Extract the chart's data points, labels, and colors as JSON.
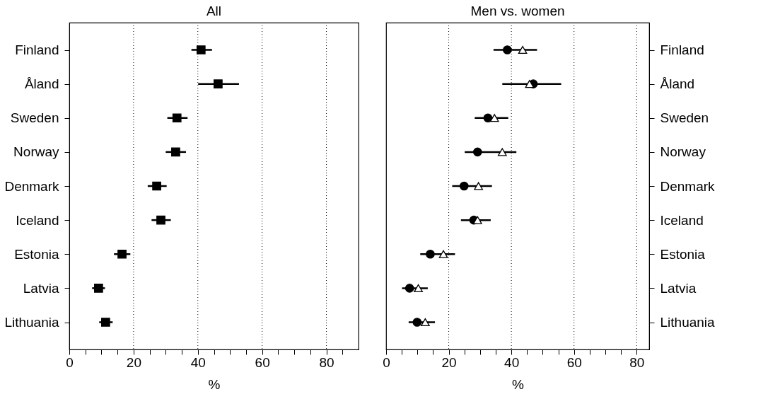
{
  "chart_data": [
    {
      "type": "scatter",
      "orientation": "horizontal",
      "title": "All",
      "xlabel": "%",
      "grid": "x",
      "categories": [
        "Finland",
        "Åland",
        "Sweden",
        "Norway",
        "Denmark",
        "Iceland",
        "Estonia",
        "Latvia",
        "Lithuania"
      ],
      "series": [
        {
          "color": "#000000",
          "marker": "square",
          "values": [
            41.0,
            46.3,
            33.5,
            33.1,
            27.2,
            28.5,
            16.4,
            9.1,
            11.3
          ],
          "errors": [
            [
              38.0,
              44.4
            ],
            [
              40.1,
              52.8
            ],
            [
              30.5,
              36.8
            ],
            [
              30.0,
              36.3
            ],
            [
              24.4,
              30.3
            ],
            [
              25.6,
              31.6
            ],
            [
              13.9,
              19.0
            ],
            [
              7.1,
              11.1
            ],
            [
              9.3,
              13.5
            ]
          ]
        }
      ],
      "xlim": [
        0,
        90
      ],
      "xticks": [
        0,
        {
          "value": 5,
          "label": null
        },
        {
          "value": 10,
          "label": null
        },
        {
          "value": 15,
          "label": null
        },
        20,
        {
          "value": 25,
          "label": null
        },
        {
          "value": 30,
          "label": null
        },
        {
          "value": 35,
          "label": null
        },
        40,
        {
          "value": 45,
          "label": null
        },
        {
          "value": 50,
          "label": null
        },
        {
          "value": 55,
          "label": null
        },
        60,
        {
          "value": 65,
          "label": null
        },
        {
          "value": 70,
          "label": null
        },
        {
          "value": 75,
          "label": null
        },
        80,
        {
          "value": 85,
          "label": null
        }
      ]
    },
    {
      "type": "scatter",
      "orientation": "horizontal",
      "title": "Men vs.  women",
      "xlabel": "%",
      "grid": "x",
      "categories": [
        "Finland",
        "Åland",
        "Sweden",
        "Norway",
        "Denmark",
        "Iceland",
        "Estonia",
        "Latvia",
        "Lithuania"
      ],
      "series": [
        {
          "color": "#000000",
          "marker": "circle",
          "values": [
            38.7,
            47.0,
            32.5,
            29.2,
            24.9,
            28.0,
            14.1,
            7.5,
            9.9
          ],
          "errors": [
            [
              34.3,
              48.2
            ],
            [
              37.1,
              55.9
            ],
            [
              28.3,
              39.0
            ],
            [
              25.1,
              41.6
            ],
            [
              21.1,
              33.8
            ],
            [
              23.9,
              33.4
            ],
            [
              10.9,
              22.0
            ],
            [
              5.1,
              13.3
            ],
            [
              7.2,
              15.6
            ]
          ]
        },
        {
          "color": "#000000",
          "marker": "triangle",
          "values": [
            43.6,
            45.8,
            34.6,
            37.1,
            29.5,
            29.2,
            18.3,
            10.3,
            12.5
          ]
        }
      ],
      "xlim": [
        0,
        84
      ],
      "xticks": [
        0,
        {
          "value": 5,
          "label": null
        },
        {
          "value": 10,
          "label": null
        },
        {
          "value": 15,
          "label": null
        },
        20,
        {
          "value": 25,
          "label": null
        },
        {
          "value": 30,
          "label": null
        },
        {
          "value": 35,
          "label": null
        },
        40,
        {
          "value": 45,
          "label": null
        },
        {
          "value": 50,
          "label": null
        },
        {
          "value": 55,
          "label": null
        },
        60,
        {
          "value": 65,
          "label": null
        },
        {
          "value": 70,
          "label": null
        },
        {
          "value": 75,
          "label": null
        },
        80
      ]
    }
  ]
}
